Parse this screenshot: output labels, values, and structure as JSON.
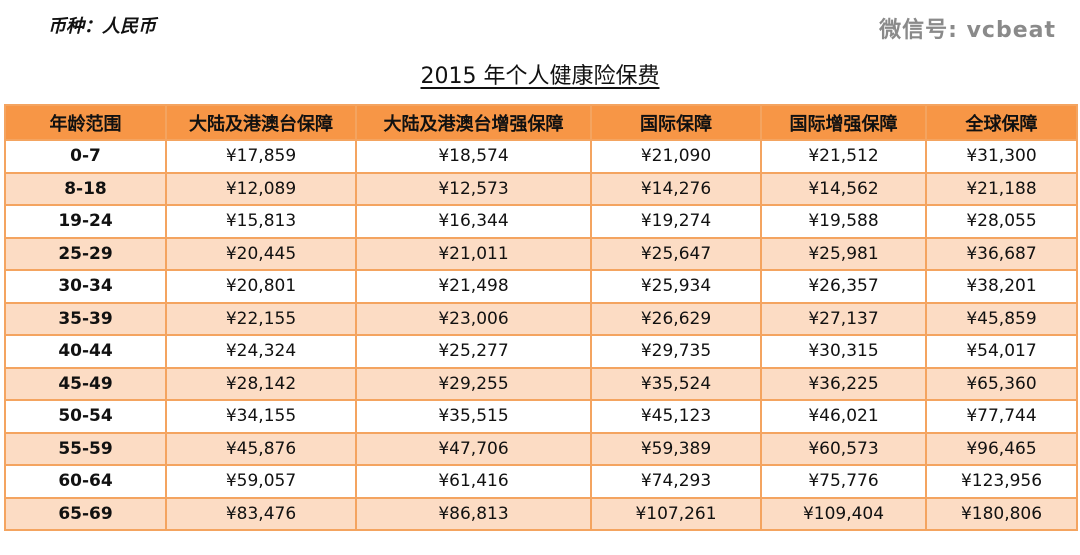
{
  "currency_label": "币种：人民币",
  "title": "2015 年个人健康险保费",
  "headers": [
    "年龄范围",
    "大陆及港澳台保障",
    "大陆及港澳台增强保障",
    "国际保障",
    "国际增强保障",
    "全球保障"
  ],
  "rows": [
    [
      "0-7",
      "¥17,859",
      "¥18,574",
      "¥21,090",
      "¥21,512",
      "¥31,300"
    ],
    [
      "8-18",
      "¥12,089",
      "¥12,573",
      "¥14,276",
      "¥14,562",
      "¥21,188"
    ],
    [
      "19-24",
      "¥15,813",
      "¥16,344",
      "¥19,274",
      "¥19,588",
      "¥28,055"
    ],
    [
      "25-29",
      "¥20,445",
      "¥21,011",
      "¥25,647",
      "¥25,981",
      "¥36,687"
    ],
    [
      "30-34",
      "¥20,801",
      "¥21,498",
      "¥25,934",
      "¥26,357",
      "¥38,201"
    ],
    [
      "35-39",
      "¥22,155",
      "¥23,006",
      "¥26,629",
      "¥27,137",
      "¥45,859"
    ],
    [
      "40-44",
      "¥24,324",
      "¥25,277",
      "¥29,735",
      "¥30,315",
      "¥54,017"
    ],
    [
      "45-49",
      "¥28,142",
      "¥29,255",
      "¥35,524",
      "¥36,225",
      "¥65,360"
    ],
    [
      "50-54",
      "¥34,155",
      "¥35,515",
      "¥45,123",
      "¥46,021",
      "¥77,744"
    ],
    [
      "55-59",
      "¥45,876",
      "¥47,706",
      "¥59,389",
      "¥60,573",
      "¥96,465"
    ],
    [
      "60-64",
      "¥59,057",
      "¥61,416",
      "¥74,293",
      "¥75,776",
      "¥123,956"
    ],
    [
      "65-69",
      "¥83,476",
      "¥86,813",
      "¥107,261",
      "¥109,404",
      "¥180,806"
    ]
  ],
  "watermark": "微信号: vcbeat"
}
